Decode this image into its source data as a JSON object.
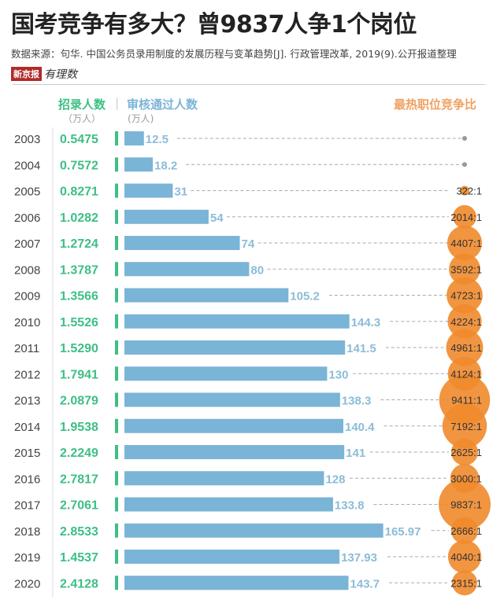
{
  "title": "国考竞争有多大？曾9837人争1个岗位",
  "source": "数据来源：句华. 中国公务员录用制度的发展历程与变革趋势[J]. 行政管理改革, 2019(9).公开报道整理",
  "logo": {
    "brand": "新京报",
    "column": "有理数"
  },
  "chart_data": {
    "type": "bar",
    "categories": [
      "2003",
      "2004",
      "2005",
      "2006",
      "2007",
      "2008",
      "2009",
      "2010",
      "2011",
      "2012",
      "2013",
      "2014",
      "2015",
      "2016",
      "2017",
      "2018",
      "2019",
      "2020"
    ],
    "series": [
      {
        "name": "招录人数",
        "unit": "（万人）",
        "labels": [
          "0.5475",
          "0.7572",
          "0.8271",
          "1.0282",
          "1.2724",
          "1.3787",
          "1.3566",
          "1.5526",
          "1.5290",
          "1.7941",
          "2.0879",
          "1.9538",
          "2.2249",
          "2.7817",
          "2.7061",
          "2.8533",
          "1.4537",
          "2.4128"
        ],
        "color": "#3dbf84"
      },
      {
        "name": "审核通过人数",
        "unit": "(万人)",
        "values": [
          12.5,
          18.2,
          31,
          54,
          74,
          80,
          105.2,
          144.3,
          141.5,
          130,
          138.3,
          140.4,
          141,
          128,
          133.8,
          165.97,
          137.93,
          143.7
        ],
        "labels": [
          "12.5",
          "18.2",
          "31",
          "54",
          "74",
          "80",
          "105.2",
          "144.3",
          "141.5",
          "130",
          "138.3",
          "140.4",
          "141",
          "128",
          "133.8",
          "165.97",
          "137.93",
          "143.7"
        ],
        "color": "#7ab4d6"
      },
      {
        "name": "最热职位竞争比",
        "values": [
          null,
          null,
          322,
          2014,
          4407,
          3592,
          4723,
          4224,
          4961,
          4124,
          9411,
          7192,
          2625,
          3000,
          9837,
          2666,
          4040,
          2315
        ],
        "labels": [
          "",
          "",
          "322:1",
          "2014:1",
          "4407:1",
          "3592:1",
          "4723:1",
          "4224:1",
          "4961:1",
          "4124:1",
          "9411:1",
          "7192:1",
          "2625:1",
          "3000:1",
          "9837:1",
          "2666:1",
          "4040:1",
          "2315:1"
        ],
        "color": "#f08a2c"
      }
    ]
  }
}
